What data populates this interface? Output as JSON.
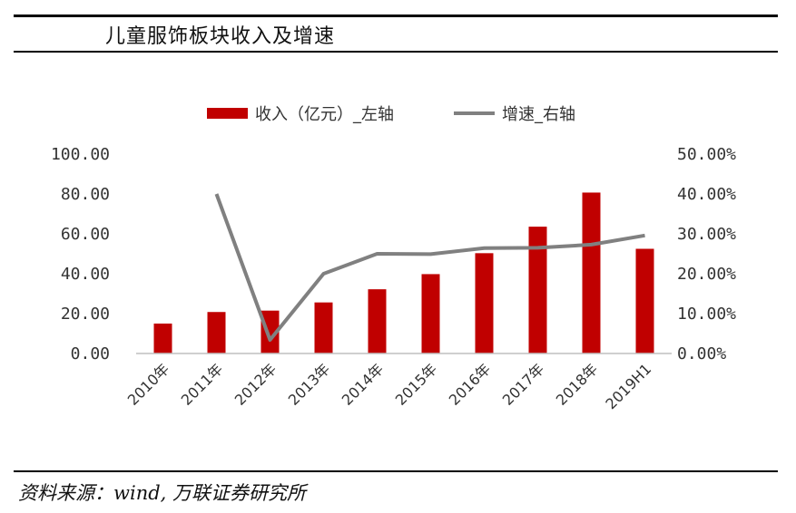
{
  "header": {
    "title": "儿童服饰板块收入及增速"
  },
  "footer": {
    "source": "资料来源：wind, 万联证券研究所"
  },
  "colors": {
    "bar": "#C00000",
    "line": "#808080",
    "axis": "#BFBFBF"
  },
  "chart_data": {
    "type": "bar",
    "categories": [
      "2010年",
      "2011年",
      "2012年",
      "2013年",
      "2014年",
      "2015年",
      "2016年",
      "2017年",
      "2018年",
      "2019H1"
    ],
    "series": [
      {
        "name": "收入（亿元）_左轴",
        "type": "bar",
        "axis": "left",
        "values": [
          15.0,
          20.8,
          21.5,
          25.6,
          32.2,
          39.8,
          50.3,
          63.6,
          80.7,
          52.5
        ]
      },
      {
        "name": "增速_右轴",
        "type": "line",
        "axis": "right",
        "values": [
          null,
          40.0,
          3.4,
          20.0,
          25.0,
          24.9,
          26.4,
          26.5,
          27.3,
          29.6
        ]
      }
    ],
    "y_left": {
      "ylim": [
        0,
        100
      ],
      "ticks": [
        "0.00",
        "20.00",
        "40.00",
        "60.00",
        "80.00",
        "100.00"
      ]
    },
    "y_right": {
      "ylim": [
        0,
        50
      ],
      "unit": "%",
      "ticks": [
        "0.00%",
        "10.00%",
        "20.00%",
        "30.00%",
        "40.00%",
        "50.00%"
      ]
    },
    "grid": false,
    "legend_position": "top-center"
  }
}
